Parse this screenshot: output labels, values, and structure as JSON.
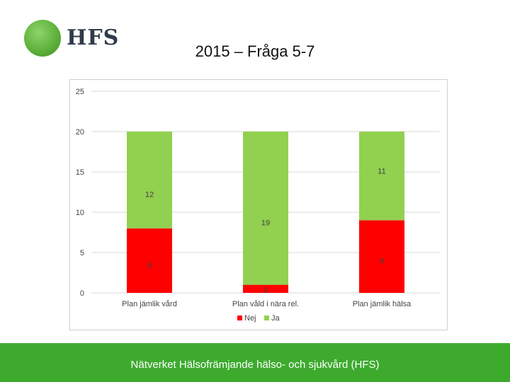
{
  "logo": {
    "text": "HFS"
  },
  "slide": {
    "title": "2015 – Fråga 5-7"
  },
  "footer": {
    "text": "Nätverket Hälsofrämjande hälso- och sjukvård (HFS)"
  },
  "chart_data": {
    "type": "bar",
    "stacked": true,
    "categories": [
      "Plan jämlik vård",
      "Plan våld i nära rel.",
      "Plan jämlik hälsa"
    ],
    "series": [
      {
        "name": "Nej",
        "values": [
          8,
          1,
          9
        ],
        "color": "#ff0000"
      },
      {
        "name": "Ja",
        "values": [
          12,
          19,
          11
        ],
        "color": "#92d050"
      }
    ],
    "ylim": [
      0,
      25
    ],
    "yticks": [
      "0",
      "5",
      "10",
      "15",
      "20",
      "25"
    ],
    "grid": true,
    "legend": "bottom"
  }
}
